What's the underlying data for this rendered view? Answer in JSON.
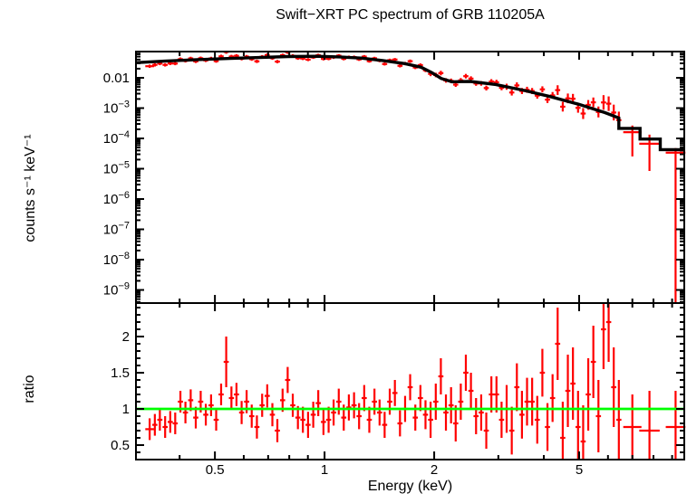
{
  "chart_data": {
    "type": "scatter",
    "title": "Swift−XRT PC spectrum of GRB 110205A",
    "xlabel": "Energy (keV)",
    "x_scale": "log",
    "x_range": [
      0.3035,
      9.72
    ],
    "x_major_ticks": [
      {
        "v": 0.5,
        "label": "0.5"
      },
      {
        "v": 1,
        "label": "1"
      },
      {
        "v": 2,
        "label": "2"
      },
      {
        "v": 5,
        "label": "5"
      }
    ],
    "x_minor_ticks": [
      0.4,
      0.6,
      0.7,
      0.8,
      0.9,
      3,
      4,
      6,
      7,
      8,
      9
    ],
    "colors": {
      "data": "#ff0000",
      "model": "#000000",
      "unity": "#00ff00",
      "axis": "#000000"
    },
    "panels": [
      {
        "name": "spectrum",
        "ylabel": "counts s⁻¹ keV⁻¹",
        "y_scale": "log",
        "y_range_log": [
          -9.43,
          -1.134
        ],
        "y_major_ticks": [
          {
            "log": -2,
            "label": "0.01"
          },
          {
            "log": -3,
            "base": "10",
            "exp": "−3"
          },
          {
            "log": -4,
            "base": "10",
            "exp": "−4"
          },
          {
            "log": -5,
            "base": "10",
            "exp": "−5"
          },
          {
            "log": -6,
            "base": "10",
            "exp": "−6"
          },
          {
            "log": -7,
            "base": "10",
            "exp": "−7"
          },
          {
            "log": -8,
            "base": "10",
            "exp": "−8"
          },
          {
            "log": -9,
            "base": "10",
            "exp": "−9"
          }
        ],
        "model_e_kev": [
          0.302,
          0.363,
          0.447,
          0.55,
          0.661,
          0.794,
          0.955,
          1.096,
          1.259,
          1.445,
          1.66,
          1.841,
          1.972,
          2.089,
          2.239,
          2.512,
          2.951,
          3.548,
          4.169,
          5.012,
          5.888,
          6.427
        ],
        "model_log10_counts": [
          -1.5,
          -1.45,
          -1.4,
          -1.36,
          -1.33,
          -1.3,
          -1.29,
          -1.31,
          -1.35,
          -1.43,
          -1.53,
          -1.65,
          -1.83,
          -2.02,
          -2.13,
          -2.12,
          -2.22,
          -2.42,
          -2.62,
          -2.88,
          -3.15,
          -3.325
        ],
        "model_steps_e1_e2_log10": [
          [
            6.427,
            7.35,
            -3.67
          ],
          [
            7.35,
            8.35,
            -4.02
          ],
          [
            8.35,
            9.72,
            -4.37
          ]
        ],
        "points_format": "[E_keV, log10_counts, err_up_dex, err_dn_dex(optional), bin_halfwidth_dex(optional)]",
        "points": [
          [
            0.331,
            -1.618,
            0.055,
            0.055,
            0.012
          ],
          [
            0.342,
            -1.574,
            0.055
          ],
          [
            0.353,
            -1.529,
            0.055
          ],
          [
            0.365,
            -1.574,
            0.055
          ],
          [
            0.377,
            -1.527,
            0.055
          ],
          [
            0.389,
            -1.53,
            0.055
          ],
          [
            0.402,
            -1.385,
            0.055
          ],
          [
            0.415,
            -1.44,
            0.055
          ],
          [
            0.429,
            -1.361,
            0.055
          ],
          [
            0.443,
            -1.458,
            0.055
          ],
          [
            0.457,
            -1.355,
            0.055
          ],
          [
            0.472,
            -1.425,
            0.055
          ],
          [
            0.488,
            -1.362,
            0.055
          ],
          [
            0.504,
            -1.448,
            0.055
          ],
          [
            0.52,
            -1.292,
            0.055
          ],
          [
            0.537,
            -1.147,
            0.06
          ],
          [
            0.555,
            -1.297,
            0.055
          ],
          [
            0.573,
            -1.274,
            0.055
          ],
          [
            0.592,
            -1.37,
            0.055
          ],
          [
            0.611,
            -1.302,
            0.055
          ],
          [
            0.631,
            -1.384,
            0.055
          ],
          [
            0.652,
            -1.457,
            0.055
          ],
          [
            0.674,
            -1.306,
            0.055
          ],
          [
            0.696,
            -1.25,
            0.055
          ],
          [
            0.719,
            -1.352,
            0.055
          ],
          [
            0.742,
            -1.466,
            0.055
          ],
          [
            0.767,
            -1.257,
            0.055
          ],
          [
            0.792,
            -1.154,
            0.055
          ],
          [
            0.818,
            -1.277,
            0.055
          ],
          [
            0.845,
            -1.352,
            0.055
          ],
          [
            0.872,
            -1.365,
            0.05
          ],
          [
            0.901,
            -1.4,
            0.05
          ],
          [
            0.931,
            -1.326,
            0.05
          ],
          [
            0.961,
            -1.256,
            0.05
          ],
          [
            0.993,
            -1.376,
            0.05
          ],
          [
            1.026,
            -1.371,
            0.05
          ],
          [
            1.059,
            -1.327,
            0.05
          ],
          [
            1.094,
            -1.269,
            0.05
          ],
          [
            1.129,
            -1.374,
            0.05
          ],
          [
            1.166,
            -1.317,
            0.05
          ],
          [
            1.205,
            -1.316,
            0.05
          ],
          [
            1.244,
            -1.392,
            0.05
          ],
          [
            1.285,
            -1.3,
            0.05
          ],
          [
            1.327,
            -1.45,
            0.05
          ],
          [
            1.371,
            -1.357,
            0.05
          ],
          [
            1.416,
            -1.435,
            0.05
          ],
          [
            1.462,
            -1.545,
            0.05
          ],
          [
            1.51,
            -1.419,
            0.05
          ],
          [
            1.56,
            -1.397,
            0.05
          ],
          [
            1.611,
            -1.604,
            0.055
          ],
          [
            1.664,
            -1.53,
            0.055
          ],
          [
            1.718,
            -1.452,
            0.055
          ],
          [
            1.775,
            -1.659,
            0.055
          ],
          [
            1.833,
            -1.58,
            0.055
          ],
          [
            1.893,
            -1.752,
            0.06
          ],
          [
            1.955,
            -1.871,
            0.075
          ],
          [
            2.02,
            -1.907,
            0.075
          ],
          [
            2.086,
            -1.844,
            0.075
          ],
          [
            2.154,
            -2.086,
            0.075
          ],
          [
            2.225,
            -2.1,
            0.075
          ],
          [
            2.291,
            -2.225,
            0.075
          ],
          [
            2.366,
            -2.084,
            0.075
          ],
          [
            2.443,
            -1.946,
            0.075
          ],
          [
            2.523,
            -2.026,
            0.075
          ],
          [
            2.606,
            -2.189,
            0.075
          ],
          [
            2.692,
            -2.185,
            0.075
          ],
          [
            2.78,
            -2.338,
            0.08
          ],
          [
            2.871,
            -2.124,
            0.08
          ],
          [
            2.965,
            -2.146,
            0.08
          ],
          [
            3.062,
            -2.331,
            0.08
          ],
          [
            3.162,
            -2.295,
            0.1
          ],
          [
            3.266,
            -2.485,
            0.1
          ],
          [
            3.373,
            -2.251,
            0.1
          ],
          [
            3.483,
            -2.436,
            0.1
          ],
          [
            3.597,
            -2.396,
            0.1
          ],
          [
            3.715,
            -2.436,
            0.1
          ],
          [
            3.837,
            -2.588,
            0.1
          ],
          [
            3.963,
            -2.381,
            0.1
          ],
          [
            4.093,
            -2.722,
            0.11
          ],
          [
            4.227,
            -2.579,
            0.11
          ],
          [
            4.365,
            -2.406,
            0.16
          ],
          [
            4.508,
            -2.953,
            0.16
          ],
          [
            4.656,
            -2.679,
            0.16
          ],
          [
            4.808,
            -2.691,
            0.16
          ],
          [
            4.966,
            -2.992,
            0.16
          ],
          [
            5.129,
            -3.179,
            0.18
          ],
          [
            5.297,
            -2.894,
            0.16
          ],
          [
            5.47,
            -2.81,
            0.16
          ],
          [
            5.649,
            -3.127,
            0.18
          ],
          [
            5.834,
            -2.813,
            0.24
          ],
          [
            6.026,
            -2.854,
            0.24
          ],
          [
            6.223,
            -3.146,
            0.26
          ],
          [
            6.427,
            -3.396,
            0.28
          ],
          [
            7.0,
            -3.795,
            0.22,
            0.8,
            0.025
          ],
          [
            7.8,
            -4.175,
            0.3,
            0.9,
            0.028
          ],
          [
            9.2,
            -4.47,
            0.15,
            5.0,
            0.027
          ]
        ]
      },
      {
        "name": "ratio",
        "ylabel": "ratio",
        "y_scale": "linear",
        "y_range": [
          0.3,
          2.4625
        ],
        "y_major_ticks": [
          {
            "v": 0.5,
            "label": "0.5"
          },
          {
            "v": 1,
            "label": "1"
          },
          {
            "v": 1.5,
            "label": "1.5"
          },
          {
            "v": 2,
            "label": "2"
          }
        ],
        "y_minor_step": 0.1,
        "unity_line": 1.0,
        "points_format": "[E_keV, ratio, err, bin_halfwidth_dex(optional)]",
        "points": [
          [
            0.331,
            0.72,
            0.15,
            0.012
          ],
          [
            0.342,
            0.78,
            0.15
          ],
          [
            0.353,
            0.85,
            0.15
          ],
          [
            0.365,
            0.75,
            0.15
          ],
          [
            0.377,
            0.82,
            0.15
          ],
          [
            0.389,
            0.8,
            0.15
          ],
          [
            0.402,
            1.1,
            0.15
          ],
          [
            0.415,
            0.95,
            0.15
          ],
          [
            0.429,
            1.12,
            0.15
          ],
          [
            0.443,
            0.88,
            0.15
          ],
          [
            0.457,
            1.1,
            0.15
          ],
          [
            0.472,
            0.92,
            0.15
          ],
          [
            0.488,
            1.05,
            0.15
          ],
          [
            0.504,
            0.85,
            0.15
          ],
          [
            0.52,
            1.2,
            0.15
          ],
          [
            0.537,
            1.65,
            0.35
          ],
          [
            0.555,
            1.15,
            0.16
          ],
          [
            0.573,
            1.2,
            0.16
          ],
          [
            0.592,
            0.95,
            0.16
          ],
          [
            0.611,
            1.1,
            0.16
          ],
          [
            0.631,
            0.9,
            0.16
          ],
          [
            0.652,
            0.75,
            0.16
          ],
          [
            0.674,
            1.05,
            0.16
          ],
          [
            0.696,
            1.18,
            0.16
          ],
          [
            0.719,
            0.92,
            0.16
          ],
          [
            0.742,
            0.7,
            0.16
          ],
          [
            0.767,
            1.12,
            0.16
          ],
          [
            0.792,
            1.4,
            0.18
          ],
          [
            0.818,
            1.05,
            0.16
          ],
          [
            0.845,
            0.88,
            0.16
          ],
          [
            0.872,
            0.85,
            0.18
          ],
          [
            0.901,
            0.78,
            0.18
          ],
          [
            0.931,
            0.92,
            0.18
          ],
          [
            0.961,
            1.08,
            0.18
          ],
          [
            0.993,
            0.82,
            0.18
          ],
          [
            1.026,
            0.85,
            0.18
          ],
          [
            1.059,
            0.95,
            0.18
          ],
          [
            1.094,
            1.1,
            0.18
          ],
          [
            1.129,
            0.88,
            0.18
          ],
          [
            1.166,
            1.02,
            0.18
          ],
          [
            1.205,
            1.05,
            0.18
          ],
          [
            1.244,
            0.9,
            0.18
          ],
          [
            1.285,
            1.15,
            0.18
          ],
          [
            1.327,
            0.85,
            0.18
          ],
          [
            1.371,
            1.1,
            0.18
          ],
          [
            1.416,
            0.95,
            0.18
          ],
          [
            1.462,
            0.78,
            0.18
          ],
          [
            1.51,
            1.1,
            0.18
          ],
          [
            1.56,
            1.22,
            0.18
          ],
          [
            1.611,
            0.8,
            0.18
          ],
          [
            1.664,
            1.0,
            0.18
          ],
          [
            1.718,
            1.3,
            0.18
          ],
          [
            1.775,
            0.88,
            0.18
          ],
          [
            1.833,
            1.15,
            0.18
          ],
          [
            1.893,
            0.92,
            0.2
          ],
          [
            1.955,
            0.85,
            0.25
          ],
          [
            2.02,
            1.1,
            0.25
          ],
          [
            2.086,
            1.45,
            0.25
          ],
          [
            2.154,
            0.95,
            0.25
          ],
          [
            2.225,
            1.05,
            0.25
          ],
          [
            2.291,
            0.8,
            0.25
          ],
          [
            2.366,
            1.1,
            0.25
          ],
          [
            2.443,
            1.5,
            0.25
          ],
          [
            2.523,
            1.25,
            0.25
          ],
          [
            2.606,
            0.9,
            0.25
          ],
          [
            2.692,
            0.95,
            0.25
          ],
          [
            2.78,
            0.7,
            0.25
          ],
          [
            2.871,
            1.2,
            0.25
          ],
          [
            2.965,
            1.2,
            0.25
          ],
          [
            3.062,
            0.85,
            0.25
          ],
          [
            3.162,
            1.0,
            0.33
          ],
          [
            3.266,
            0.7,
            0.33
          ],
          [
            3.373,
            1.3,
            0.33
          ],
          [
            3.483,
            0.92,
            0.33
          ],
          [
            3.597,
            1.1,
            0.33
          ],
          [
            3.715,
            1.1,
            0.33
          ],
          [
            3.837,
            0.85,
            0.33
          ],
          [
            3.963,
            1.5,
            0.33
          ],
          [
            4.093,
            0.75,
            0.33
          ],
          [
            4.227,
            1.15,
            0.33
          ],
          [
            4.365,
            1.9,
            0.5
          ],
          [
            4.508,
            0.6,
            0.5
          ],
          [
            4.656,
            1.25,
            0.5
          ],
          [
            4.808,
            1.35,
            0.5
          ],
          [
            4.966,
            0.75,
            0.5
          ],
          [
            5.129,
            0.55,
            0.5
          ],
          [
            5.297,
            1.2,
            0.5
          ],
          [
            5.47,
            1.65,
            0.5
          ],
          [
            5.649,
            0.9,
            0.5
          ],
          [
            5.834,
            2.1,
            0.55
          ],
          [
            6.026,
            2.2,
            0.55
          ],
          [
            6.223,
            1.3,
            0.55
          ],
          [
            6.427,
            0.85,
            0.55
          ],
          [
            7.0,
            0.75,
            0.45,
            0.025
          ],
          [
            7.8,
            0.7,
            0.55,
            0.028
          ],
          [
            9.2,
            0.75,
            0.5,
            0.027
          ]
        ]
      }
    ]
  }
}
